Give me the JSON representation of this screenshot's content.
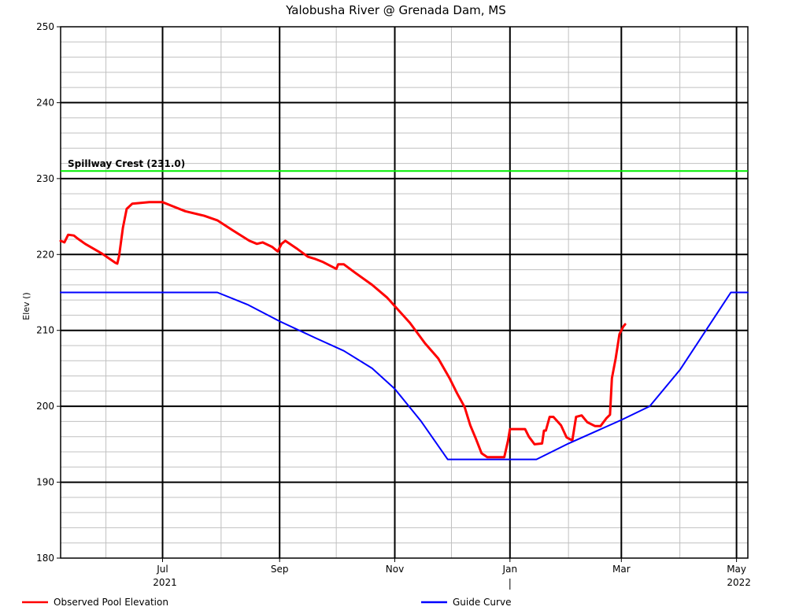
{
  "chart_data": {
    "type": "line",
    "title": "Yalobusha River @ Grenada Dam, MS",
    "xlabel": "",
    "ylabel": "Elev ()",
    "ylim": [
      180,
      250
    ],
    "yticks": [
      180,
      190,
      200,
      210,
      220,
      230,
      240,
      250
    ],
    "y_minor_step": 2,
    "xlim": [
      "2021-05-08",
      "2022-05-07"
    ],
    "x_major_ticks": [
      {
        "date": "2021-07-01",
        "label": "Jul",
        "sublabel": "2021"
      },
      {
        "date": "2021-09-01",
        "label": "Sep",
        "sublabel": ""
      },
      {
        "date": "2021-11-01",
        "label": "Nov",
        "sublabel": ""
      },
      {
        "date": "2022-01-01",
        "label": "Jan",
        "sublabel": "|"
      },
      {
        "date": "2022-03-01",
        "label": "Mar",
        "sublabel": ""
      },
      {
        "date": "2022-05-01",
        "label": "May",
        "sublabel": "2022"
      }
    ],
    "x_minor_ticks": [
      "2021-06-01",
      "2021-08-01",
      "2021-10-01",
      "2021-12-01",
      "2022-02-01",
      "2022-04-01"
    ],
    "grid": true,
    "legend_position": "bottom",
    "annotations": [
      {
        "type": "hline",
        "value": 231.0,
        "label": "Spillway Crest (231.0)",
        "color": "#00ee00"
      }
    ],
    "series": [
      {
        "name": "Observed Pool Elevation",
        "color": "#ff0000",
        "points": [
          [
            "2021-05-08",
            221.8
          ],
          [
            "2021-05-10",
            221.6
          ],
          [
            "2021-05-12",
            222.6
          ],
          [
            "2021-05-15",
            222.5
          ],
          [
            "2021-05-17",
            222.1
          ],
          [
            "2021-05-21",
            221.4
          ],
          [
            "2021-05-30",
            220.1
          ],
          [
            "2021-06-06",
            218.9
          ],
          [
            "2021-06-07",
            218.8
          ],
          [
            "2021-06-08",
            219.8
          ],
          [
            "2021-06-10",
            223.5
          ],
          [
            "2021-06-12",
            226.0
          ],
          [
            "2021-06-15",
            226.7
          ],
          [
            "2021-06-24",
            226.9
          ],
          [
            "2021-07-01",
            226.9
          ],
          [
            "2021-07-06",
            226.4
          ],
          [
            "2021-07-13",
            225.7
          ],
          [
            "2021-07-23",
            225.1
          ],
          [
            "2021-07-30",
            224.5
          ],
          [
            "2021-08-07",
            223.2
          ],
          [
            "2021-08-16",
            221.8
          ],
          [
            "2021-08-20",
            221.4
          ],
          [
            "2021-08-23",
            221.6
          ],
          [
            "2021-08-28",
            221.0
          ],
          [
            "2021-08-31",
            220.4
          ],
          [
            "2021-09-02",
            221.4
          ],
          [
            "2021-09-04",
            221.8
          ],
          [
            "2021-09-10",
            220.8
          ],
          [
            "2021-09-16",
            219.7
          ],
          [
            "2021-09-20",
            219.4
          ],
          [
            "2021-09-24",
            219.0
          ],
          [
            "2021-10-01",
            218.1
          ],
          [
            "2021-10-02",
            218.7
          ],
          [
            "2021-10-05",
            218.7
          ],
          [
            "2021-10-11",
            217.6
          ],
          [
            "2021-10-20",
            216.0
          ],
          [
            "2021-10-28",
            214.3
          ],
          [
            "2021-11-01",
            213.2
          ],
          [
            "2021-11-09",
            211.0
          ],
          [
            "2021-11-17",
            208.3
          ],
          [
            "2021-11-24",
            206.3
          ],
          [
            "2021-11-30",
            203.7
          ],
          [
            "2021-12-04",
            201.7
          ],
          [
            "2021-12-08",
            199.9
          ],
          [
            "2021-12-11",
            197.5
          ],
          [
            "2021-12-14",
            195.7
          ],
          [
            "2021-12-17",
            193.8
          ],
          [
            "2021-12-20",
            193.3
          ],
          [
            "2021-12-29",
            193.3
          ],
          [
            "2021-12-31",
            195.5
          ],
          [
            "2022-01-01",
            197.0
          ],
          [
            "2022-01-09",
            197.0
          ],
          [
            "2022-01-11",
            196.0
          ],
          [
            "2022-01-14",
            195.0
          ],
          [
            "2022-01-18",
            195.1
          ],
          [
            "2022-01-19",
            196.8
          ],
          [
            "2022-01-20",
            196.8
          ],
          [
            "2022-01-22",
            198.6
          ],
          [
            "2022-01-24",
            198.6
          ],
          [
            "2022-01-28",
            197.5
          ],
          [
            "2022-01-31",
            195.9
          ],
          [
            "2022-02-03",
            195.5
          ],
          [
            "2022-02-05",
            198.6
          ],
          [
            "2022-02-08",
            198.8
          ],
          [
            "2022-02-11",
            197.9
          ],
          [
            "2022-02-15",
            197.4
          ],
          [
            "2022-02-18",
            197.4
          ],
          [
            "2022-02-21",
            198.4
          ],
          [
            "2022-02-23",
            198.9
          ],
          [
            "2022-02-24",
            203.7
          ],
          [
            "2022-02-26",
            206.3
          ],
          [
            "2022-02-27",
            207.9
          ],
          [
            "2022-02-28",
            209.5
          ],
          [
            "2022-03-02",
            210.5
          ],
          [
            "2022-03-03",
            210.8
          ]
        ]
      },
      {
        "name": "Guide Curve",
        "color": "#0000ff",
        "points": [
          [
            "2021-05-08",
            215.0
          ],
          [
            "2021-07-30",
            215.0
          ],
          [
            "2021-08-15",
            213.4
          ],
          [
            "2021-09-01",
            211.2
          ],
          [
            "2021-09-20",
            209.0
          ],
          [
            "2021-10-05",
            207.3
          ],
          [
            "2021-10-20",
            205.0
          ],
          [
            "2021-11-01",
            202.3
          ],
          [
            "2021-11-15",
            198.0
          ],
          [
            "2021-11-29",
            193.0
          ],
          [
            "2022-01-15",
            193.0
          ],
          [
            "2022-02-01",
            195.1
          ],
          [
            "2022-03-01",
            198.2
          ],
          [
            "2022-03-16",
            200.0
          ],
          [
            "2022-04-01",
            204.8
          ],
          [
            "2022-04-28",
            215.0
          ],
          [
            "2022-05-07",
            215.0
          ]
        ]
      }
    ]
  },
  "legend": {
    "items": [
      {
        "label": "Observed Pool Elevation",
        "color": "#ff0000"
      },
      {
        "label": "Guide Curve",
        "color": "#0000ff"
      }
    ]
  }
}
